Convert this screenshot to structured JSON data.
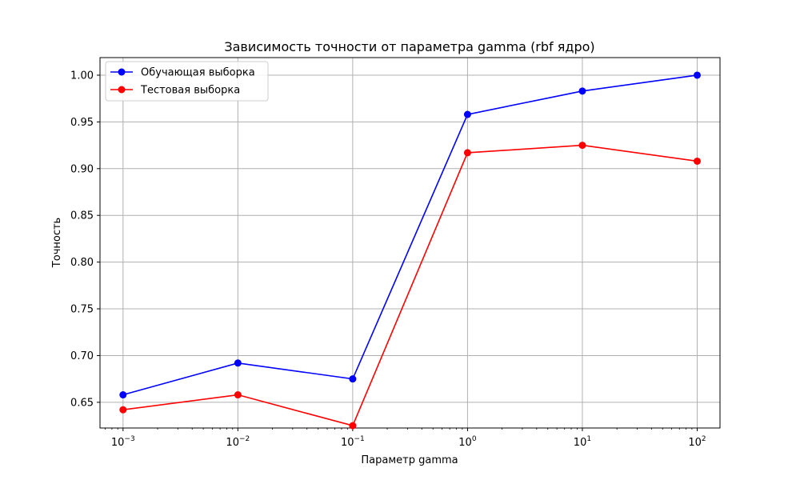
{
  "chart_data": {
    "type": "line",
    "title": "Зависимость точности от параметра gamma (rbf ядро)",
    "xlabel": "Параметр gamma",
    "ylabel": "Точность",
    "xscale": "log",
    "x": [
      0.001,
      0.01,
      0.1,
      1,
      10,
      100
    ],
    "x_tick_labels": [
      {
        "base": "10",
        "exp": "−3"
      },
      {
        "base": "10",
        "exp": "−2"
      },
      {
        "base": "10",
        "exp": "−1"
      },
      {
        "base": "10",
        "exp": "0"
      },
      {
        "base": "10",
        "exp": "1"
      },
      {
        "base": "10",
        "exp": "2"
      }
    ],
    "xlim": [
      0.00063,
      158
    ],
    "ylim": [
      0.6225,
      1.0188
    ],
    "y_ticks": [
      "0.65",
      "0.70",
      "0.75",
      "0.80",
      "0.85",
      "0.90",
      "0.95",
      "1.00"
    ],
    "grid": true,
    "legend_position": "upper-left",
    "series": [
      {
        "name": "Обучающая выборка",
        "color": "#0000ff",
        "values": [
          0.658,
          0.692,
          0.675,
          0.958,
          0.983,
          1.0
        ]
      },
      {
        "name": "Тестовая выборка",
        "color": "#ff0000",
        "values": [
          0.642,
          0.658,
          0.625,
          0.917,
          0.925,
          0.908
        ]
      }
    ]
  }
}
